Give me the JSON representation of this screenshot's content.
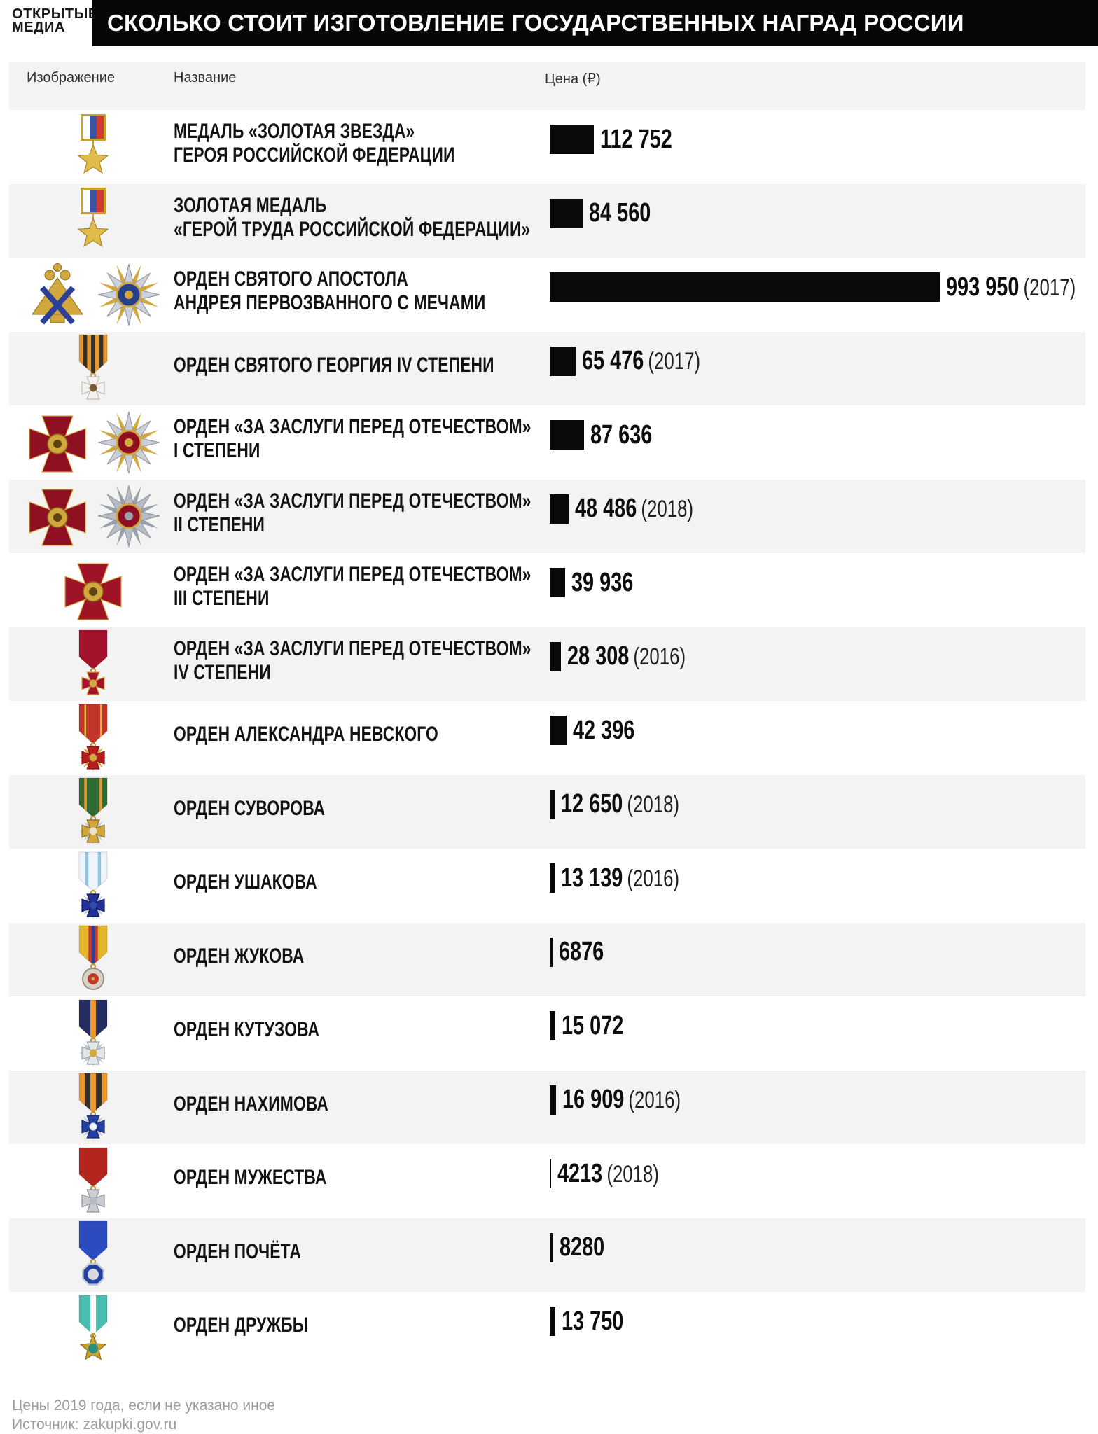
{
  "logo": {
    "line1": "ОТКРЫТЫЕ",
    "line2": "МЕДИА"
  },
  "title": "СКОЛЬКО СТОИТ ИЗГОТОВЛЕНИЕ ГОСУДАРСТВЕННЫХ НАГРАД РОССИИ",
  "table": {
    "headers": {
      "image": "Изображение",
      "name": "Название",
      "price": "Цена (₽)"
    }
  },
  "footer": {
    "note": "Цены 2019 года, если не указано иное",
    "source": "Источник: zakupki.gov.ru"
  },
  "chart_data": {
    "type": "bar",
    "orientation": "horizontal",
    "title": "СКОЛЬКО СТОИТ ИЗГОТОВЛЕНИЕ ГОСУДАРСТВЕННЫХ НАГРАД РОССИИ",
    "unit": "₽",
    "bar_color": "#0a0a0a",
    "xlim": [
      0,
      1000000
    ],
    "categories": [
      "МЕДАЛЬ «ЗОЛОТАЯ ЗВЕЗДА» ГЕРОЯ РОССИЙСКОЙ ФЕДЕРАЦИИ",
      "ЗОЛОТАЯ МЕДАЛЬ «ГЕРОЙ ТРУДА РОССИЙСКОЙ ФЕДЕРАЦИИ»",
      "ОРДЕН СВЯТОГО АПОСТОЛА АНДРЕЯ ПЕРВОЗВАННОГО С МЕЧАМИ",
      "ОРДЕН СВЯТОГО ГЕОРГИЯ IV СТЕПЕНИ",
      "ОРДЕН «ЗА ЗАСЛУГИ ПЕРЕД ОТЕЧЕСТВОМ» I СТЕПЕНИ",
      "ОРДЕН «ЗА ЗАСЛУГИ ПЕРЕД ОТЕЧЕСТВОМ» II СТЕПЕНИ",
      "ОРДЕН «ЗА ЗАСЛУГИ ПЕРЕД ОТЕЧЕСТВОМ» III СТЕПЕНИ",
      "ОРДЕН «ЗА ЗАСЛУГИ ПЕРЕД ОТЕЧЕСТВОМ» IV СТЕПЕНИ",
      "ОРДЕН АЛЕКСАНДРА НЕВСКОГО",
      "ОРДЕН СУВОРОВА",
      "ОРДЕН УШАКОВА",
      "ОРДЕН ЖУКОВА",
      "ОРДЕН КУТУЗОВА",
      "ОРДЕН НАХИМОВА",
      "ОРДЕН МУЖЕСТВА",
      "ОРДЕН ПОЧЁТА",
      "ОРДЕН ДРУЖБЫ"
    ],
    "values": [
      112752,
      84560,
      993950,
      65476,
      87636,
      48486,
      39936,
      28308,
      42396,
      12650,
      13139,
      6876,
      15072,
      16909,
      4213,
      8280,
      13750
    ],
    "rows": [
      {
        "name": [
          "МЕДАЛЬ «ЗОЛОТАЯ ЗВЕЗДА»",
          "ГЕРОЯ РОССИЙСКОЙ ФЕДЕРАЦИИ"
        ],
        "value": 112752,
        "label": "112 752",
        "year": "",
        "icons": [
          {
            "name": "hero-russia-gold-star-icon",
            "type": "block-star",
            "stripes": [
              "#ffffff",
              "#3b55a5",
              "#cf3a33"
            ],
            "frame": "#c9a227",
            "star": "#e0bd4a"
          }
        ]
      },
      {
        "name": [
          "ЗОЛОТАЯ МЕДАЛЬ",
          "«ГЕРОЙ ТРУДА РОССИЙСКОЙ ФЕДЕРАЦИИ»"
        ],
        "value": 84560,
        "label": "84 560",
        "year": "",
        "icons": [
          {
            "name": "hero-labour-gold-medal-icon",
            "type": "block-star",
            "stripes": [
              "#ffffff",
              "#3b55a5",
              "#cf3a33"
            ],
            "frame": "#c9a227",
            "star": "#e0bd4a"
          }
        ]
      },
      {
        "name": [
          "ОРДЕН СВЯТОГО АПОСТОЛА",
          "АНДРЕЯ ПЕРВОЗВАННОГО С МЕЧАМИ"
        ],
        "value": 993950,
        "label": "993 950",
        "year": "(2017)",
        "icons": [
          {
            "name": "andrew-eagle-badge-icon",
            "type": "eagle",
            "gold": "#d2a73e",
            "cross": "#2c3f97"
          },
          {
            "name": "andrew-star-badge-icon",
            "type": "plaque",
            "rays": "#ccd1da",
            "accent": "#d2a73e",
            "center": "#27408b",
            "ring": "#d2a73e"
          }
        ]
      },
      {
        "name": [
          "ОРДЕН СВЯТОГО ГЕОРГИЯ IV СТЕПЕНИ"
        ],
        "value": 65476,
        "label": "65 476",
        "year": "(2017)",
        "icons": [
          {
            "name": "st-george-cross-icon",
            "type": "ribbon",
            "stripes": [
              [
                "#e8962e",
                1
              ],
              [
                "#36302a",
                1
              ],
              [
                "#e8962e",
                1
              ],
              [
                "#36302a",
                1
              ],
              [
                "#e8962e",
                1
              ],
              [
                "#36302a",
                1
              ],
              [
                "#e8962e",
                1
              ]
            ],
            "pendant": "maltese",
            "pFill": "#f4f2ee",
            "pEdge": "#c2beb4",
            "pCenter": "#7a5a36"
          }
        ]
      },
      {
        "name": [
          "ОРДЕН «ЗА ЗАСЛУГИ ПЕРЕД ОТЕЧЕСТВОМ»",
          "I СТЕПЕНИ"
        ],
        "value": 87636,
        "label": "87 636",
        "year": "",
        "icons": [
          {
            "name": "fatherland-1cl-cross-badge-icon",
            "type": "crossbadge",
            "cross": "#8f1022",
            "edge": "#d2a73e",
            "center": "#d2a73e",
            "dot": "#5a4410"
          },
          {
            "name": "fatherland-1cl-star-badge-icon",
            "type": "plaque",
            "rays": "#c9ced7",
            "accent": "#d2a73e",
            "center": "#8f1022",
            "ring": "#d2a73e"
          }
        ]
      },
      {
        "name": [
          "ОРДЕН «ЗА ЗАСЛУГИ ПЕРЕД ОТЕЧЕСТВОМ»",
          "II СТЕПЕНИ"
        ],
        "value": 48486,
        "label": "48 486",
        "year": "(2018)",
        "icons": [
          {
            "name": "fatherland-2cl-cross-badge-icon",
            "type": "crossbadge",
            "cross": "#8f1022",
            "edge": "#d2a73e",
            "center": "#d2a73e",
            "dot": "#5a4410"
          },
          {
            "name": "fatherland-2cl-star-badge-icon",
            "type": "plaque",
            "rays": "#b6bbc4",
            "accent": "#9aa0ab",
            "center": "#8f1022",
            "ring": "#d2a73e"
          }
        ]
      },
      {
        "name": [
          "ОРДЕН «ЗА ЗАСЛУГИ ПЕРЕД ОТЕЧЕСТВОМ»",
          "III СТЕПЕНИ"
        ],
        "value": 39936,
        "label": "39 936",
        "year": "",
        "icons": [
          {
            "name": "fatherland-3cl-cross-badge-icon",
            "type": "crossbadge",
            "cross": "#9e1325",
            "edge": "#d2a73e",
            "center": "#d2a73e",
            "dot": "#5a4410"
          }
        ]
      },
      {
        "name": [
          "ОРДЕН «ЗА ЗАСЛУГИ ПЕРЕД ОТЕЧЕСТВОМ»",
          "IV СТЕПЕНИ"
        ],
        "value": 28308,
        "label": "28 308",
        "year": "(2016)",
        "icons": [
          {
            "name": "fatherland-4cl-cross-icon",
            "type": "ribbon",
            "stripes": [
              [
                "#a3132b",
                1
              ]
            ],
            "pendant": "maltese",
            "pFill": "#a3132b",
            "pEdge": "#d2a73e",
            "pCenter": "#d2a73e"
          }
        ]
      },
      {
        "name": [
          "ОРДЕН АЛЕКСАНДРА НЕВСКОГО"
        ],
        "value": 42396,
        "label": "42 396",
        "year": "",
        "icons": [
          {
            "name": "alexander-nevsky-cross-icon",
            "type": "ribbon",
            "stripes": [
              [
                "#c2352b",
                3
              ],
              [
                "#e0b63c",
                1
              ],
              [
                "#c2352b",
                8
              ],
              [
                "#e0b63c",
                1
              ],
              [
                "#c2352b",
                3
              ]
            ],
            "pendant": "maltese",
            "pFill": "#b51d1d",
            "pEdge": "#8f1022",
            "rays": "#d8a93a",
            "pCenter": "#d2a73e"
          }
        ]
      },
      {
        "name": [
          "ОРДЕН СУВОРОВА"
        ],
        "value": 12650,
        "label": "12 650",
        "year": "(2018)",
        "icons": [
          {
            "name": "suvorov-cross-icon",
            "type": "ribbon",
            "stripes": [
              [
                "#2f6b33",
                2
              ],
              [
                "#e8962e",
                1
              ],
              [
                "#2f6b33",
                5
              ],
              [
                "#e8962e",
                1
              ],
              [
                "#2f6b33",
                2
              ]
            ],
            "pendant": "maltese",
            "pFill": "#d2a73e",
            "pEdge": "#8a6d1f",
            "rays": "#ccd1da",
            "pCenter": "#e9e2cf"
          }
        ]
      },
      {
        "name": [
          "ОРДЕН УШАКОВА"
        ],
        "value": 13139,
        "label": "13 139",
        "year": "(2016)",
        "icons": [
          {
            "name": "ushakov-cross-icon",
            "type": "ribbon",
            "stripes": [
              [
                "#eef6fb",
                2
              ],
              [
                "#8fc3e0",
                1
              ],
              [
                "#eef6fb",
                3
              ],
              [
                "#8fc3e0",
                1
              ],
              [
                "#eef6fb",
                2
              ]
            ],
            "pendant": "maltese",
            "pFill": "#203097",
            "pEdge": "#10185c",
            "rays": "#c4c9d2",
            "pCenter": "#3448a8"
          }
        ]
      },
      {
        "name": [
          "ОРДЕН ЖУКОВА"
        ],
        "value": 6876,
        "label": "6876",
        "year": "",
        "icons": [
          {
            "name": "zhukov-medal-icon",
            "type": "ribbon",
            "stripes": [
              [
                "#e3b52c",
                3
              ],
              [
                "#c23b2e",
                1
              ],
              [
                "#2b3f9e",
                1
              ],
              [
                "#c23b2e",
                1
              ],
              [
                "#e3b52c",
                3
              ]
            ],
            "pendant": "circle",
            "pFill": "#d9d3c6",
            "pEdge": "#99948a",
            "pCenter": "#bf3a2b"
          }
        ]
      },
      {
        "name": [
          "ОРДЕН КУТУЗОВА"
        ],
        "value": 15072,
        "label": "15 072",
        "year": "",
        "icons": [
          {
            "name": "kutuzov-cross-icon",
            "type": "ribbon",
            "stripes": [
              [
                "#252e63",
                2
              ],
              [
                "#e8962e",
                1
              ],
              [
                "#252e63",
                2
              ]
            ],
            "pendant": "maltese",
            "pFill": "#e3e7e9",
            "pEdge": "#9aa3a8",
            "rays": "#c4c9d2",
            "pCenter": "#d2a73e"
          }
        ]
      },
      {
        "name": [
          "ОРДЕН НАХИМОВА"
        ],
        "value": 16909,
        "label": "16 909",
        "year": "(2016)",
        "icons": [
          {
            "name": "nakhimov-cross-icon",
            "type": "ribbon",
            "stripes": [
              [
                "#e8962e",
                1
              ],
              [
                "#36302a",
                1
              ],
              [
                "#e8962e",
                1
              ],
              [
                "#36302a",
                1
              ],
              [
                "#e8962e",
                1
              ]
            ],
            "pendant": "maltese",
            "pFill": "#2440a0",
            "pEdge": "#16266b",
            "rays": "#c4c9d2",
            "pCenter": "#e8f0f7"
          }
        ]
      },
      {
        "name": [
          "ОРДЕН МУЖЕСТВА"
        ],
        "value": 4213,
        "label": "4213",
        "year": "(2018)",
        "icons": [
          {
            "name": "courage-cross-icon",
            "type": "ribbon",
            "stripes": [
              [
                "#b3251d",
                1
              ]
            ],
            "pendant": "maltese",
            "pFill": "#caccd1",
            "pEdge": "#8f939b",
            "pCenter": "#b7bac0"
          }
        ]
      },
      {
        "name": [
          "ОРДЕН ПОЧЁТА"
        ],
        "value": 8280,
        "label": "8280",
        "year": "",
        "icons": [
          {
            "name": "honour-badge-icon",
            "type": "ribbon",
            "stripes": [
              [
                "#2b4bbf",
                1
              ]
            ],
            "pendant": "octagon",
            "pFill": "#2440a0",
            "pEdge": "#c4c9d2",
            "pCenter": "#d5d8de"
          }
        ]
      },
      {
        "name": [
          "ОРДЕН ДРУЖБЫ"
        ],
        "value": 13750,
        "label": "13 750",
        "year": "",
        "icons": [
          {
            "name": "friendship-star-icon",
            "type": "ribbon",
            "stripes": [
              [
                "#49bdb0",
                2
              ],
              [
                "#ffffff",
                1
              ],
              [
                "#49bdb0",
                2
              ]
            ],
            "pendant": "star-globe",
            "pFill": "#c9a227",
            "pEdge": "#8a6d1f",
            "pCenter": "#2e8f7a"
          }
        ]
      }
    ]
  }
}
